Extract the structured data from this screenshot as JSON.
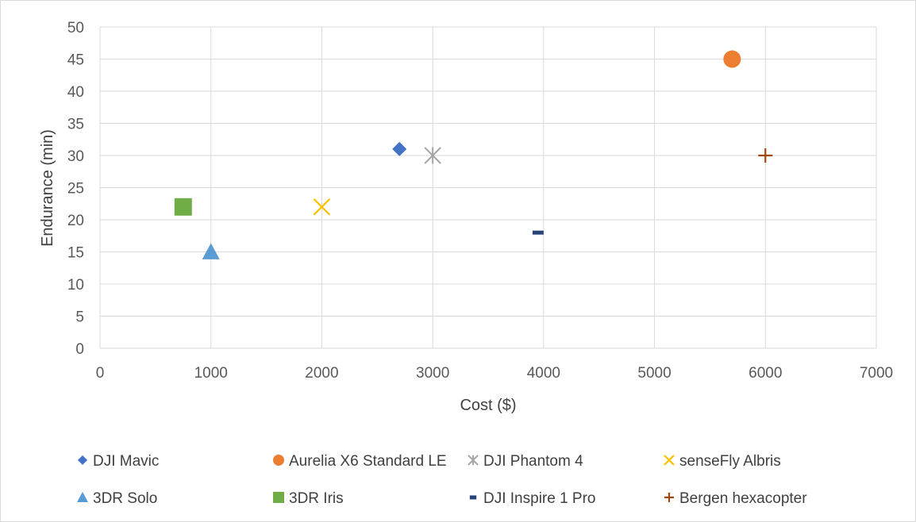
{
  "chart_data": {
    "type": "scatter",
    "title": "",
    "xlabel": "Cost ($)",
    "ylabel": "Endurance (min)",
    "xlim": [
      0,
      7000
    ],
    "ylim": [
      0,
      50
    ],
    "xticks": [
      0,
      1000,
      2000,
      3000,
      4000,
      5000,
      6000,
      7000
    ],
    "yticks": [
      0,
      5,
      10,
      15,
      20,
      25,
      30,
      35,
      40,
      45,
      50
    ],
    "grid": "vertical and horizontal gridlines",
    "legend_position": "bottom",
    "series": [
      {
        "name": "DJI Mavic",
        "marker": "diamond",
        "color": "#4472c4",
        "x": [
          2700
        ],
        "y": [
          31
        ]
      },
      {
        "name": "Aurelia X6 Standard LE",
        "marker": "circle",
        "color": "#ed7d31",
        "x": [
          5700
        ],
        "y": [
          45
        ]
      },
      {
        "name": "DJI Phantom 4",
        "marker": "asterisk",
        "color": "#a5a5a5",
        "x": [
          3000
        ],
        "y": [
          30
        ]
      },
      {
        "name": "senseFly Albris",
        "marker": "x",
        "color": "#ffc000",
        "x": [
          2000
        ],
        "y": [
          22
        ]
      },
      {
        "name": "3DR Solo",
        "marker": "triangle",
        "color": "#5b9bd5",
        "x": [
          1000
        ],
        "y": [
          15
        ]
      },
      {
        "name": "3DR Iris",
        "marker": "square",
        "color": "#70ad47",
        "x": [
          750
        ],
        "y": [
          22
        ]
      },
      {
        "name": "DJI Inspire 1 Pro",
        "marker": "dash",
        "color": "#264478",
        "x": [
          3950
        ],
        "y": [
          18
        ]
      },
      {
        "name": "Bergen hexacopter",
        "marker": "plus",
        "color": "#9e480e",
        "x": [
          6000
        ],
        "y": [
          30
        ]
      }
    ]
  }
}
